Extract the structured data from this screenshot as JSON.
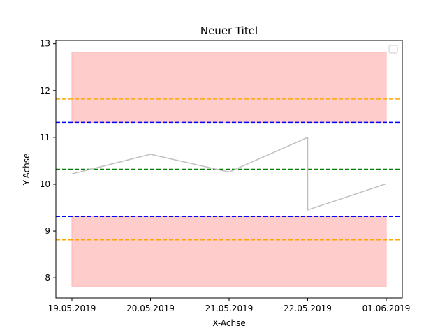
{
  "chart_data": {
    "type": "line",
    "title": "Neuer Titel",
    "xlabel": "X-Achse",
    "ylabel": "Y-Achse",
    "categories": [
      "19.05.2019",
      "20.05.2019",
      "21.05.2019",
      "22.05.2019",
      "01.06.2019"
    ],
    "series": [
      {
        "color": "#bfbfbf",
        "points": [
          {
            "x": "19.05.2019",
            "y": 10.22
          },
          {
            "x": "20.05.2019",
            "y": 10.64
          },
          {
            "x": "21.05.2019",
            "y": 10.26
          },
          {
            "x": "22.05.2019",
            "y": 11.0
          },
          {
            "x": "22.05.2019",
            "y": 9.45
          },
          {
            "x": "01.06.2019",
            "y": 10.01
          }
        ]
      }
    ],
    "reference_lines": [
      {
        "y": 11.82,
        "color": "#ffa500",
        "style": "dashed"
      },
      {
        "y": 11.32,
        "color": "#0000ff",
        "style": "dashed"
      },
      {
        "y": 10.32,
        "color": "#008000",
        "style": "dashed"
      },
      {
        "y": 9.31,
        "color": "#0000ff",
        "style": "dashed"
      },
      {
        "y": 8.81,
        "color": "#ffa500",
        "style": "dashed"
      }
    ],
    "shaded_bands": [
      {
        "x_from": "19.05.2019",
        "x_to": "01.06.2019",
        "y_from": 11.32,
        "y_to": 12.82,
        "color": "#ffcccc"
      },
      {
        "x_from": "19.05.2019",
        "x_to": "01.06.2019",
        "y_from": 7.82,
        "y_to": 9.31,
        "color": "#ffcccc"
      }
    ],
    "yticks": [
      8,
      9,
      10,
      11,
      12,
      13
    ],
    "ylim": [
      7.57,
      13.07
    ],
    "grid": false,
    "legend": {
      "placement": "top-right",
      "entries": []
    }
  }
}
